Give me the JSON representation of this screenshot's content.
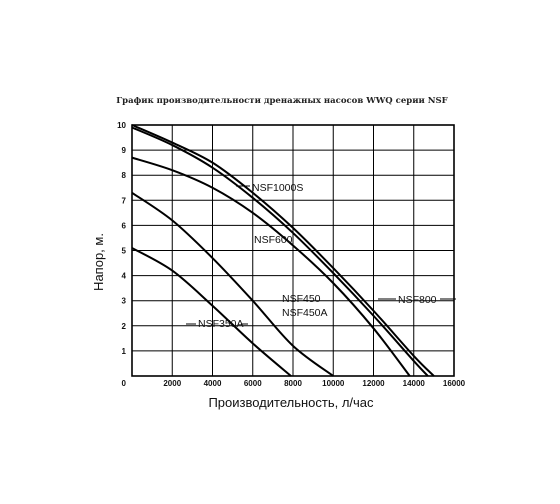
{
  "chart_data": {
    "type": "line",
    "title": "График производительности дренажных насосов WWQ серии NSF",
    "xlabel": "Производительность, л/час",
    "ylabel": "Напор, м.",
    "xlim": [
      0,
      16000
    ],
    "ylim": [
      0,
      10
    ],
    "xticks": [
      "0",
      "2000",
      "4000",
      "6000",
      "8000",
      "10000",
      "12000",
      "14000",
      "16000"
    ],
    "yticks": [
      "1",
      "2",
      "3",
      "4",
      "5",
      "6",
      "7",
      "8",
      "9",
      "10"
    ],
    "grid": true,
    "series": [
      {
        "name": "NSF1000S",
        "x": [
          0,
          2000,
          4000,
          6000,
          8000,
          10000,
          12000,
          14000,
          15000
        ],
        "y": [
          10,
          9.3,
          8.5,
          7.3,
          5.9,
          4.3,
          2.6,
          0.8,
          0
        ]
      },
      {
        "name": "NSF600",
        "x": [
          0,
          2000,
          4000,
          6000,
          8000,
          10000,
          12000,
          14000,
          14700
        ],
        "y": [
          9.9,
          9.2,
          8.3,
          7.1,
          5.7,
          4.1,
          2.4,
          0.6,
          0
        ]
      },
      {
        "name": "NSF800",
        "x": [
          0,
          2000,
          4000,
          6000,
          8000,
          10000,
          12000,
          13800
        ],
        "y": [
          8.7,
          8.2,
          7.5,
          6.5,
          5.2,
          3.7,
          1.9,
          0
        ]
      },
      {
        "name": "NSF450",
        "x": [
          0,
          2000,
          4000,
          6000,
          8000,
          10000
        ],
        "y": [
          7.3,
          6.2,
          4.7,
          3.0,
          1.2,
          0
        ]
      },
      {
        "name": "NSF450A",
        "x": [
          0,
          2000,
          4000,
          6000,
          8000,
          10000
        ],
        "y": [
          7.3,
          6.2,
          4.7,
          3.0,
          1.2,
          0
        ]
      },
      {
        "name": "NSF350A",
        "x": [
          0,
          2000,
          4000,
          6000,
          7900
        ],
        "y": [
          5.1,
          4.2,
          2.8,
          1.3,
          0
        ]
      }
    ]
  }
}
